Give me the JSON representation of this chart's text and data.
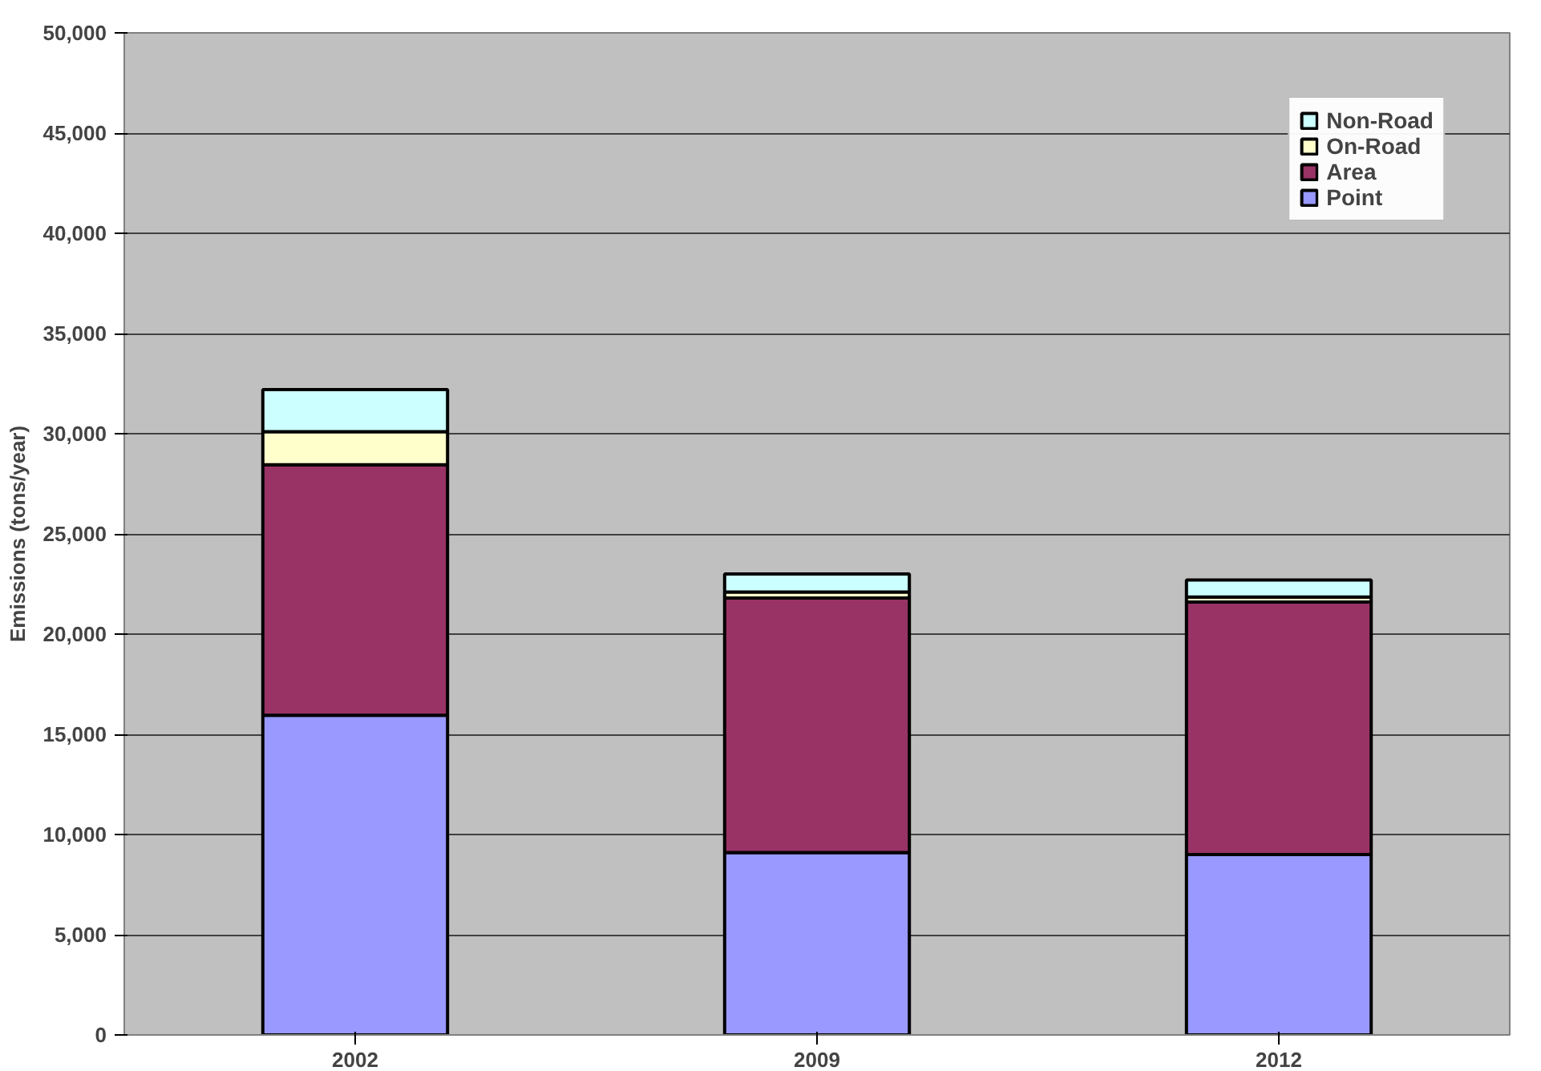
{
  "chart_data": {
    "type": "bar",
    "stacked": true,
    "ylabel": "Emissions (tons/year)",
    "categories": [
      "2002",
      "2009",
      "2012"
    ],
    "series": [
      {
        "name": "Point",
        "color": "#9999ff",
        "values": [
          15950,
          9100,
          9000
        ]
      },
      {
        "name": "Area",
        "color": "#993366",
        "values": [
          12500,
          12700,
          12600
        ]
      },
      {
        "name": "On-Road",
        "color": "#ffffcc",
        "values": [
          1650,
          300,
          250
        ]
      },
      {
        "name": "Non-Road",
        "color": "#ccffff",
        "values": [
          2100,
          900,
          850
        ]
      }
    ],
    "ylim": [
      0,
      50000
    ],
    "yticks": [
      {
        "value": 0,
        "label": "0"
      },
      {
        "value": 5000,
        "label": "5,000"
      },
      {
        "value": 10000,
        "label": "10,000"
      },
      {
        "value": 15000,
        "label": "15,000"
      },
      {
        "value": 20000,
        "label": "20,000"
      },
      {
        "value": 25000,
        "label": "25,000"
      },
      {
        "value": 30000,
        "label": "30,000"
      },
      {
        "value": 35000,
        "label": "35,000"
      },
      {
        "value": 40000,
        "label": "40,000"
      },
      {
        "value": 45000,
        "label": "45,000"
      },
      {
        "value": 50000,
        "label": "50,000"
      }
    ],
    "grid": "y",
    "legend": "top right"
  }
}
